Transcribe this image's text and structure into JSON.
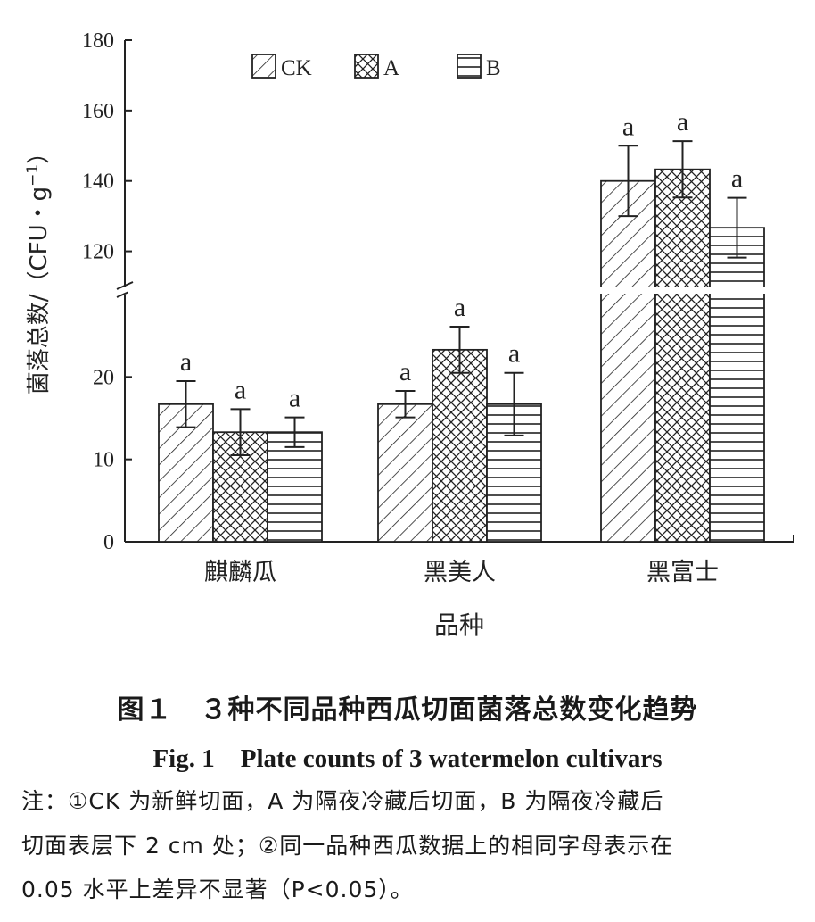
{
  "chart_data": {
    "type": "bar",
    "categories": [
      "麒麟瓜",
      "黑美人",
      "黑富士"
    ],
    "series": [
      {
        "name": "CK",
        "values": [
          16.7,
          16.7,
          140.0
        ],
        "errors": [
          2.8,
          1.6,
          10.0
        ],
        "letters": [
          "a",
          "a",
          "a"
        ]
      },
      {
        "name": "A",
        "values": [
          13.3,
          23.3,
          143.3
        ],
        "errors": [
          2.8,
          2.8,
          8.0
        ],
        "letters": [
          "a",
          "a",
          "a"
        ]
      },
      {
        "name": "B",
        "values": [
          13.3,
          16.7,
          126.7
        ],
        "errors": [
          1.8,
          3.8,
          8.5
        ],
        "letters": [
          "a",
          "a",
          "a"
        ]
      }
    ],
    "xlabel": "品种",
    "ylabel": "菌落总数/（CFU・g",
    "ylabel_sup": "−1",
    "ylabel_end": "）",
    "y_lower": {
      "range": [
        0,
        30
      ],
      "ticks": [
        0,
        10,
        20
      ]
    },
    "y_upper": {
      "range": [
        110,
        180
      ],
      "ticks": [
        120,
        140,
        160,
        180
      ]
    },
    "axis_break": true,
    "legend_position": "top-left",
    "grid": false
  },
  "caption": {
    "cn": "图１　３种不同品种西瓜切面菌落总数变化趋势",
    "en": "Fig. 1　Plate counts of 3 watermelon cultivars"
  },
  "notes": [
    "注：①CK 为新鲜切面，A 为隔夜冷藏后切面，B 为隔夜冷藏后",
    "切面表层下 2 cm 处；②同一品种西瓜数据上的相同字母表示在",
    "0.05 水平上差异不显著（P<0.05）。"
  ]
}
